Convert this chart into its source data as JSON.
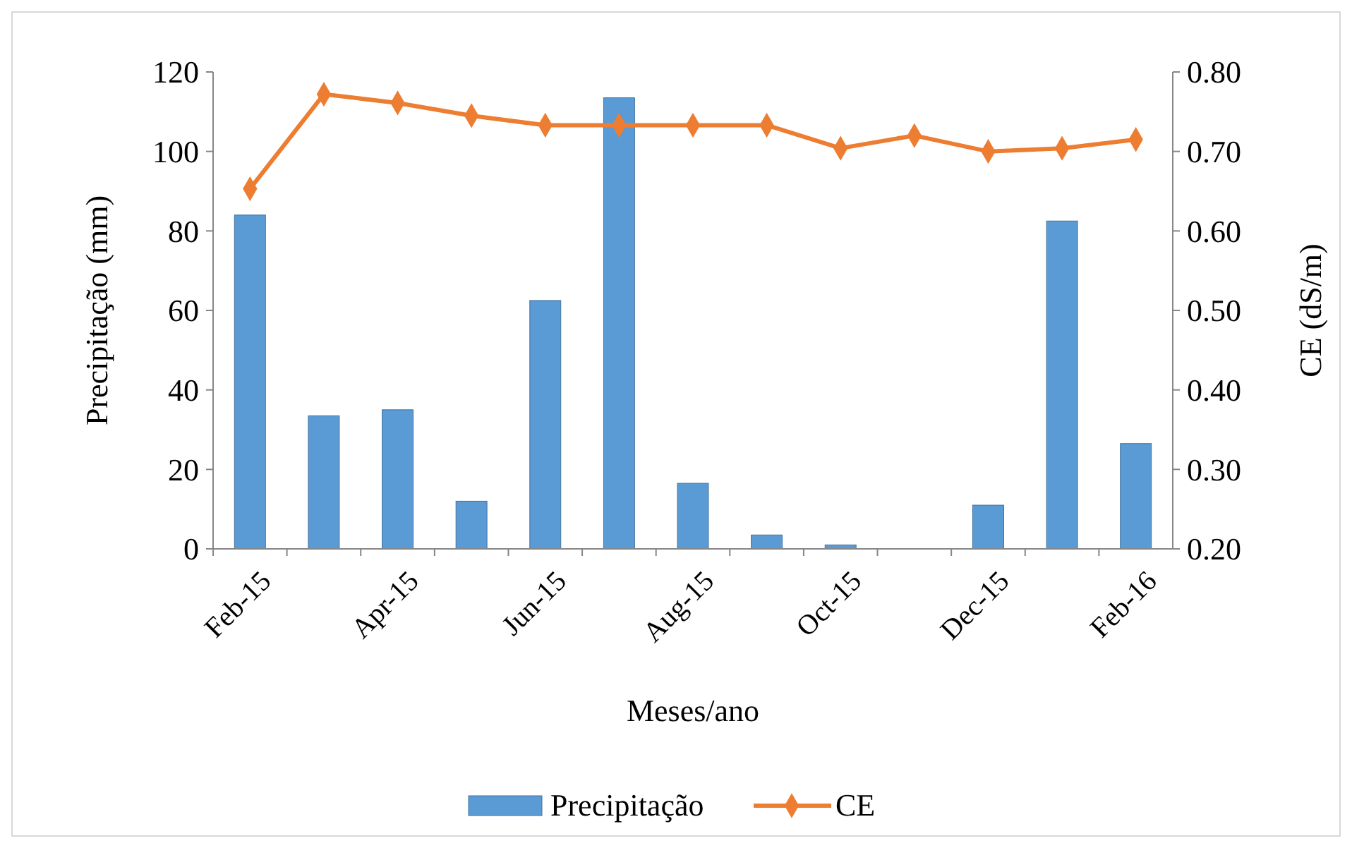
{
  "chart_data": {
    "type": "bar",
    "xlabel": "Meses/ano",
    "ylabel": "Precipitação (mm)",
    "y2label": "CE (dS/m)",
    "categories": [
      "Feb-15",
      null,
      "Apr-15",
      null,
      "Jun-15",
      null,
      "Aug-15",
      null,
      "Oct-15",
      null,
      "Dec-15",
      null,
      "Feb-16"
    ],
    "series": [
      {
        "name": "Precipitação",
        "color": "#5b9bd5",
        "values": [
          84,
          33.5,
          35,
          12,
          62.5,
          113.5,
          16.5,
          3.5,
          1,
          0,
          11,
          82.5,
          26.5
        ]
      },
      {
        "name": "CE",
        "type": "line",
        "axis": "y2",
        "color": "#ed7d31",
        "marker": "diamond",
        "values": [
          0.653,
          0.772,
          0.761,
          0.745,
          0.733,
          0.733,
          0.733,
          0.733,
          0.704,
          0.72,
          0.7,
          0.704,
          0.715
        ]
      }
    ],
    "ylim": [
      0,
      120
    ],
    "yticks": [
      0,
      20,
      40,
      60,
      80,
      100,
      120
    ],
    "y2lim": [
      0.2,
      0.8
    ],
    "y2ticks": [
      {
        "value": 0.2,
        "label": "0.20"
      },
      {
        "value": 0.3,
        "label": "0.30"
      },
      {
        "value": 0.4,
        "label": "0.40"
      },
      {
        "value": 0.5,
        "label": "0.50"
      },
      {
        "value": 0.6,
        "label": "0.60"
      },
      {
        "value": 0.7,
        "label": "0.70"
      },
      {
        "value": 0.8,
        "label": "0.80"
      }
    ],
    "grid": false,
    "legend": "bottom"
  }
}
